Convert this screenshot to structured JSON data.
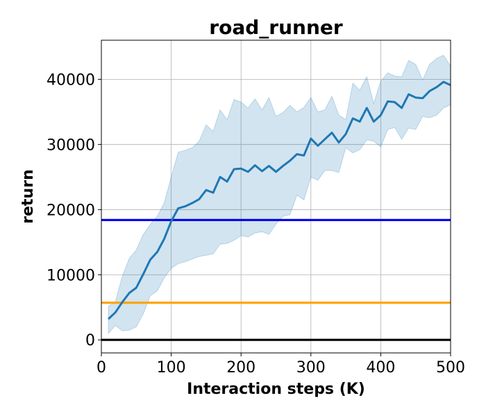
{
  "chart_data": {
    "type": "line",
    "title": "road_runner",
    "xlabel": "Interaction steps (K)",
    "ylabel": "return",
    "xlim": [
      0,
      500
    ],
    "ylim": [
      -2000,
      46000
    ],
    "xticks": [
      0,
      100,
      200,
      300,
      400,
      500
    ],
    "yticks": [
      0,
      10000,
      20000,
      30000,
      40000
    ],
    "grid": true,
    "series": [
      {
        "color": "#1f77b4",
        "band_color": "#1f77b4",
        "band_opacity": 0.2,
        "x": [
          10,
          20,
          30,
          40,
          50,
          60,
          70,
          80,
          90,
          100,
          110,
          120,
          130,
          140,
          150,
          160,
          170,
          180,
          190,
          200,
          210,
          220,
          230,
          240,
          250,
          260,
          270,
          280,
          290,
          300,
          310,
          320,
          330,
          340,
          350,
          360,
          370,
          380,
          390,
          400,
          410,
          420,
          430,
          440,
          450,
          460,
          470,
          480,
          490,
          500
        ],
        "y": [
          3200,
          4200,
          5800,
          7200,
          8000,
          10100,
          12300,
          13500,
          15500,
          18200,
          20200,
          20500,
          21000,
          21600,
          23000,
          22600,
          25000,
          24300,
          26200,
          26300,
          25800,
          26800,
          25900,
          26700,
          25800,
          26700,
          27500,
          28500,
          28300,
          30900,
          29800,
          30800,
          31800,
          30300,
          31600,
          34000,
          33500,
          35600,
          33500,
          34500,
          36600,
          36500,
          35600,
          37700,
          37200,
          37100,
          38200,
          38800,
          39600,
          39100
        ],
        "y_low": [
          1000,
          2200,
          1400,
          1500,
          2000,
          4000,
          6800,
          7500,
          9500,
          11000,
          11700,
          12000,
          12400,
          12800,
          13000,
          13200,
          14700,
          14800,
          15300,
          16000,
          15800,
          16400,
          16600,
          16200,
          17800,
          19000,
          19200,
          22200,
          21500,
          25000,
          24500,
          26000,
          26000,
          25700,
          29500,
          28700,
          29200,
          30700,
          30500,
          29600,
          32300,
          32600,
          30800,
          32500,
          32300,
          34300,
          34100,
          34500,
          35600,
          36100
        ],
        "y_high": [
          5200,
          5800,
          9800,
          12500,
          13800,
          16200,
          17700,
          19000,
          21000,
          25000,
          28800,
          29100,
          29500,
          30500,
          33000,
          32000,
          35300,
          33800,
          36900,
          36500,
          35600,
          37000,
          35300,
          37200,
          34300,
          34900,
          36000,
          35000,
          35700,
          37200,
          35000,
          35300,
          37400,
          34500,
          33800,
          39400,
          38300,
          40400,
          36300,
          39700,
          41000,
          40500,
          40400,
          42900,
          42300,
          39900,
          42300,
          43200,
          43700,
          42000
        ]
      }
    ],
    "reference_lines": [
      {
        "y": 18400,
        "color": "#0000ee"
      },
      {
        "y": 5700,
        "color": "#ffa500"
      },
      {
        "y": 0,
        "color": "#000000"
      }
    ]
  }
}
